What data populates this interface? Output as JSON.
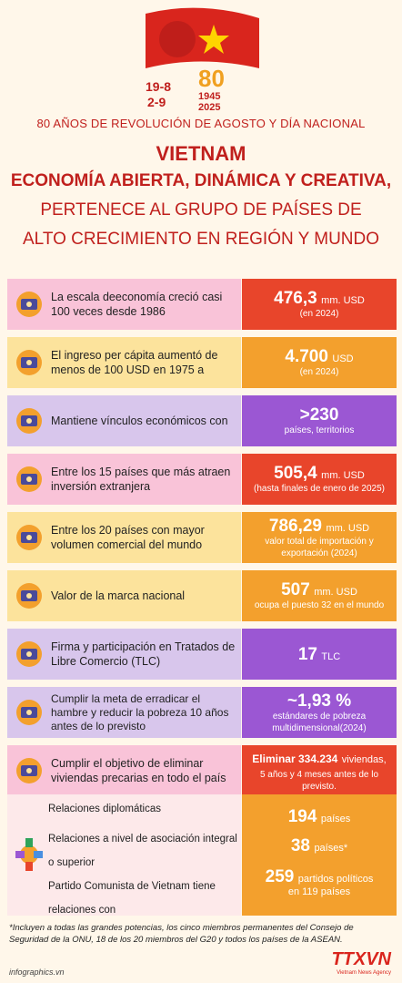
{
  "header": {
    "subtitle": "80 AÑOS DE REVOLUCIÓN DE AGOSTO Y DÍA NACIONAL",
    "title1": "VIETNAM",
    "title2": "ECONOMÍA ABIERTA, DINÁMICA Y CREATIVA,",
    "title3": "PERTENECE AL GRUPO DE PAÍSES DE",
    "title4": "ALTO CRECIMIENTO EN REGIÓN Y MUNDO",
    "logo_dates_left": [
      "19-8",
      "2-9"
    ],
    "logo_years": [
      "80",
      "1945",
      "2025"
    ]
  },
  "rows": [
    {
      "text": "La escala deeconomía creció casi 100 veces desde 1986",
      "big": "476,3",
      "unit": "mm. USD",
      "note": "(en 2024)",
      "color_label": "#f9c3d8",
      "color_value": "#e8452b",
      "icon": "growth-chart-icon"
    },
    {
      "text": "El ingreso per cápita aumentó de menos de 100 USD en 1975 a",
      "big": "4.700",
      "unit": "USD",
      "note": "(en 2024)",
      "color_label": "#fce39c",
      "color_value": "#f3a02d",
      "icon": "wallet-icon"
    },
    {
      "text": "Mantiene vínculos económicos con",
      "big": ">230",
      "unit": "",
      "note": "países, territorios",
      "color_label": "#d8c6ec",
      "color_value": "#9b57d3",
      "icon": "handshake-icon"
    },
    {
      "text": "Entre los 15 países que más atraen inversión extranjera",
      "big": "505,4",
      "unit": "mm. USD",
      "note": "(hasta finales de enero de 2025)",
      "color_label": "#f9c3d8",
      "color_value": "#e8452b",
      "icon": "investment-icon"
    },
    {
      "text": "Entre los 20 países con mayor volumen comercial del mundo",
      "big": "786,29",
      "unit": "mm. USD",
      "note": "valor total de importación y exportación (2024)",
      "color_label": "#fce39c",
      "color_value": "#f3a02d",
      "icon": "globe-trade-icon"
    },
    {
      "text": "Valor de la marca nacional",
      "big": "507",
      "unit": "mm. USD",
      "note": "ocupa el puesto 32 en el mundo",
      "color_label": "#fce39c",
      "color_value": "#f3a02d",
      "icon": "money-hand-icon"
    },
    {
      "text": "Firma y participación en Tratados de Libre Comercio (TLC)",
      "big": "17",
      "unit": "TLC",
      "note": "",
      "color_label": "#d8c6ec",
      "color_value": "#9b57d3",
      "icon": "signing-icon"
    },
    {
      "text": "Cumplir la meta de erradicar el hambre y reducir la pobreza 10 años antes de lo previsto",
      "big": "~1,93 %",
      "unit": "",
      "note": "estándares de pobreza multidimensional(2024)",
      "color_label": "#d8c6ec",
      "color_value": "#9b57d3",
      "icon": "family-house-icon"
    },
    {
      "text": "Cumplir el objetivo de eliminar viviendas precarias en todo el país",
      "big": "Eliminar 334.234",
      "unit": "viviendas,",
      "note": "5 años y 4 meses antes de lo previsto.",
      "color_label": "#f9c3d8",
      "color_value": "#e8452b",
      "icon": "house-star-icon"
    }
  ],
  "relations": {
    "labels": [
      "Relaciones diplomáticas",
      "Relaciones a nivel de asociación integral o superior",
      "Partido Comunista de Vietnam tiene relaciones con"
    ],
    "values": [
      {
        "big": "194",
        "unit": "países"
      },
      {
        "big": "38",
        "unit": "países*"
      },
      {
        "big": "259",
        "unit": "partidos políticos",
        "note": "en 119 países"
      }
    ]
  },
  "footnote": "*Incluyen a todas las grandes potencias, los cinco miembros permanentes del Consejo de Seguridad de la ONU, 18 de los 20 miembros del G20 y todos los países de la ASEAN.",
  "site": "infographics.vn",
  "agency": {
    "name": "TTXVN",
    "sub": "Vietnam News Agency"
  }
}
